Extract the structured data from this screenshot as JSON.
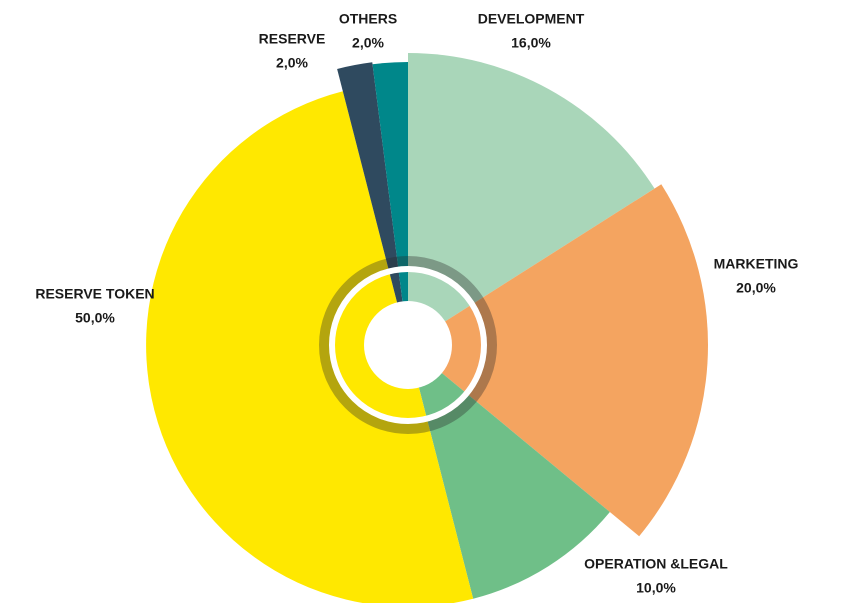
{
  "chart_data": {
    "type": "pie",
    "categories": [
      "DEVELOPMENT",
      "MARKETING",
      "OPERATION &LEGAL",
      "RESERVE TOKEN",
      "RESERVE",
      "OTHERS"
    ],
    "values": [
      16,
      20,
      10,
      50,
      2,
      2
    ],
    "value_labels": [
      "16,0%",
      "20,0%",
      "10,0%",
      "50,0%",
      "2,0%",
      "2,0%"
    ],
    "colors": [
      "#a9d6b9",
      "#f4a460",
      "#6fbf88",
      "#ffe800",
      "#2f4a5f",
      "#00878a"
    ]
  }
}
